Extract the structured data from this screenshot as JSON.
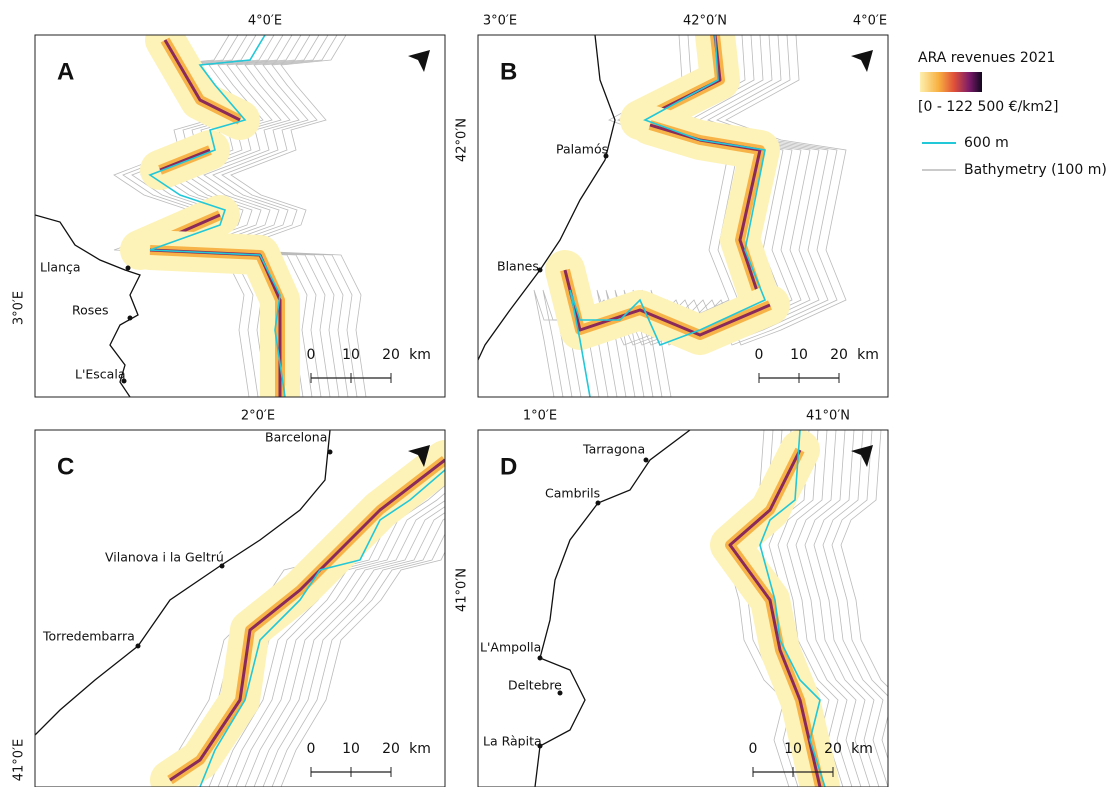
{
  "legend": {
    "title": "ARA revenues 2021",
    "range": "[0 - 122 500 €/km2]",
    "items": [
      "600 m",
      "Bathymetry (100 m)"
    ]
  },
  "panels": [
    {
      "letter": "A",
      "top_labels": [
        "4°0′E"
      ],
      "left_labels": [
        "3°0′E"
      ],
      "places": [
        "Llança",
        "Roses",
        "L'Escala"
      ],
      "scale": [
        "0",
        "10",
        "20",
        "km"
      ]
    },
    {
      "letter": "B",
      "top_labels": [
        "3°0′E",
        "42°0′N",
        "4°0′E"
      ],
      "left_labels": [
        "42°0′N"
      ],
      "places": [
        "Palamós",
        "Blanes"
      ],
      "scale": [
        "0",
        "10",
        "20",
        "km"
      ]
    },
    {
      "letter": "C",
      "top_labels": [
        "2°0′E"
      ],
      "left_labels": [
        "41°0′E"
      ],
      "places": [
        "Barcelona",
        "Vilanova i la Geltrú",
        "Torredembarra"
      ],
      "scale": [
        "0",
        "10",
        "20",
        "km"
      ]
    },
    {
      "letter": "D",
      "top_labels": [
        "1°0′E",
        "41°0′N"
      ],
      "left_labels": [
        "41°0′N"
      ],
      "places": [
        "Tarragona",
        "Cambrils",
        "L'Ampolla",
        "Deltebre",
        "La Ràpita"
      ],
      "scale": [
        "0",
        "10",
        "20",
        "km"
      ]
    }
  ]
}
